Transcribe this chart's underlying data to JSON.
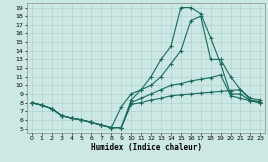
{
  "xlabel": "Humidex (Indice chaleur)",
  "background_color": "#cce8e4",
  "grid_color": "#aacccc",
  "line_color": "#1a6b5a",
  "xlim": [
    -0.5,
    23.5
  ],
  "ylim": [
    4.5,
    19.5
  ],
  "xticks": [
    0,
    1,
    2,
    3,
    4,
    5,
    6,
    7,
    8,
    9,
    10,
    11,
    12,
    13,
    14,
    15,
    16,
    17,
    18,
    19,
    20,
    21,
    22,
    23
  ],
  "yticks": [
    5,
    6,
    7,
    8,
    9,
    10,
    11,
    12,
    13,
    14,
    15,
    16,
    17,
    18,
    19
  ],
  "line_peak_x": [
    0,
    1,
    2,
    3,
    4,
    5,
    6,
    7,
    8,
    9,
    10,
    11,
    12,
    13,
    14,
    15,
    16,
    17,
    18,
    19,
    20,
    21,
    22,
    23
  ],
  "line_peak_y": [
    8.0,
    7.7,
    7.3,
    6.5,
    6.2,
    6.0,
    5.7,
    5.4,
    5.1,
    5.1,
    8.3,
    9.5,
    11.0,
    13.0,
    14.5,
    19.0,
    19.0,
    18.3,
    15.5,
    12.5,
    9.0,
    9.0,
    8.2,
    8.0
  ],
  "line_mid_x": [
    0,
    1,
    2,
    3,
    4,
    5,
    6,
    7,
    8,
    9,
    10,
    11,
    12,
    13,
    14,
    15,
    16,
    17,
    18,
    19,
    20,
    21,
    22,
    23
  ],
  "line_mid_y": [
    8.0,
    7.7,
    7.3,
    6.5,
    6.2,
    6.0,
    5.7,
    5.4,
    5.1,
    7.5,
    9.0,
    9.5,
    10.0,
    11.0,
    12.5,
    14.0,
    17.5,
    18.0,
    13.0,
    13.0,
    11.0,
    9.5,
    8.5,
    8.3
  ],
  "line_flat_x": [
    0,
    1,
    2,
    3,
    4,
    5,
    6,
    7,
    8,
    9,
    10,
    11,
    12,
    13,
    14,
    15,
    16,
    17,
    18,
    19,
    20,
    21,
    22,
    23
  ],
  "line_flat_y": [
    8.0,
    7.7,
    7.3,
    6.5,
    6.2,
    6.0,
    5.7,
    5.4,
    5.1,
    5.1,
    8.0,
    8.5,
    9.0,
    9.5,
    10.0,
    10.2,
    10.5,
    10.7,
    10.9,
    11.2,
    8.8,
    8.5,
    8.2,
    8.0
  ],
  "line_bot_x": [
    0,
    1,
    2,
    3,
    4,
    5,
    6,
    7,
    8,
    9,
    10,
    11,
    12,
    13,
    14,
    15,
    16,
    17,
    18,
    19,
    20,
    21,
    22,
    23
  ],
  "line_bot_y": [
    8.0,
    7.7,
    7.3,
    6.5,
    6.2,
    6.0,
    5.7,
    5.4,
    5.1,
    5.1,
    7.8,
    8.0,
    8.3,
    8.5,
    8.8,
    8.9,
    9.0,
    9.1,
    9.2,
    9.3,
    9.4,
    9.5,
    8.3,
    8.1
  ]
}
